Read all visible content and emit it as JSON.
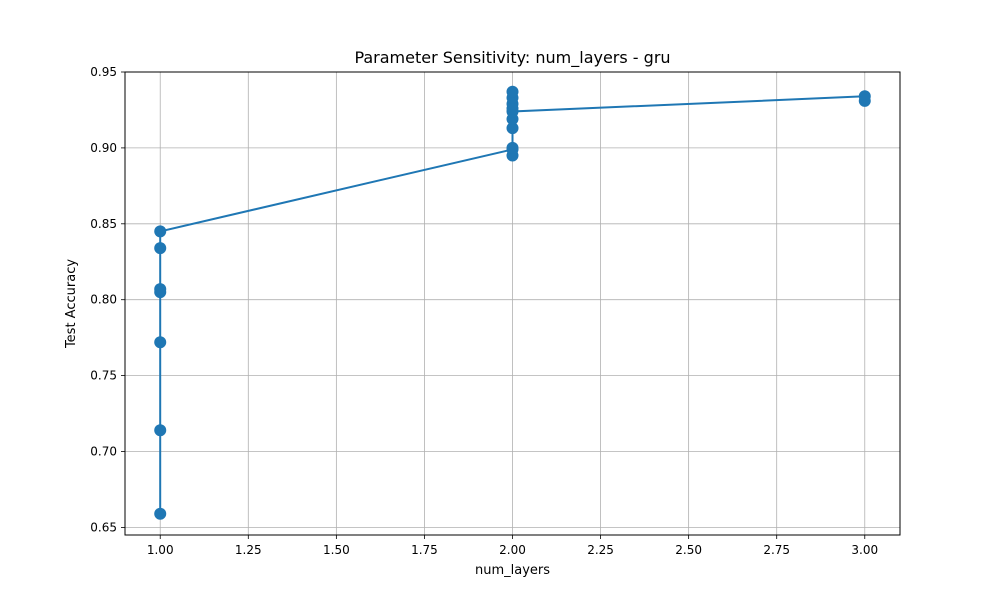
{
  "chart_data": {
    "type": "line",
    "title": "Parameter Sensitivity: num_layers - gru",
    "xlabel": "num_layers",
    "ylabel": "Test Accuracy",
    "xlim": [
      0.9,
      3.1
    ],
    "ylim": [
      0.645,
      0.95
    ],
    "xticks": [
      1.0,
      1.25,
      1.5,
      1.75,
      2.0,
      2.25,
      2.5,
      2.75,
      3.0
    ],
    "xtick_labels": [
      "1.00",
      "1.25",
      "1.50",
      "1.75",
      "2.00",
      "2.25",
      "2.50",
      "2.75",
      "3.00"
    ],
    "yticks": [
      0.65,
      0.7,
      0.75,
      0.8,
      0.85,
      0.9,
      0.95
    ],
    "ytick_labels": [
      "0.65",
      "0.70",
      "0.75",
      "0.80",
      "0.85",
      "0.90",
      "0.95"
    ],
    "grid": true,
    "color": "#1f77b4",
    "series": [
      {
        "points": [
          [
            1,
            0.659
          ],
          [
            1,
            0.714
          ],
          [
            1,
            0.772
          ],
          [
            1,
            0.805
          ],
          [
            1,
            0.807
          ],
          [
            1,
            0.834
          ],
          [
            1,
            0.845
          ],
          [
            2,
            0.899
          ],
          [
            2,
            0.895
          ],
          [
            2,
            0.9
          ],
          [
            2,
            0.913
          ],
          [
            2,
            0.919
          ],
          [
            2,
            0.924
          ],
          [
            2,
            0.926
          ],
          [
            2,
            0.929
          ],
          [
            2,
            0.933
          ],
          [
            2,
            0.937
          ],
          [
            3,
            0.934
          ],
          [
            3,
            0.931
          ]
        ],
        "line": [
          [
            1,
            0.659
          ],
          [
            1,
            0.845
          ],
          [
            2,
            0.899
          ],
          [
            2,
            0.924
          ],
          [
            3,
            0.934
          ]
        ]
      }
    ]
  }
}
